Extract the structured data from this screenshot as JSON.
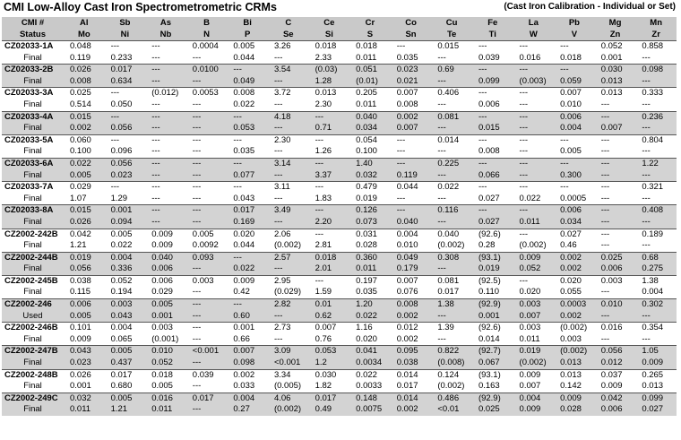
{
  "title": "CMI Low-Alloy Cast Iron Spectrometrometric CRMs",
  "subtitle": "(Cast Iron Calibration - Individual or Set)",
  "headers_row1": [
    "CMI #",
    "Al",
    "Sb",
    "As",
    "B",
    "Bi",
    "C",
    "Ce",
    "Cr",
    "Co",
    "Cu",
    "Fe",
    "La",
    "Pb",
    "Mg",
    "Mn"
  ],
  "headers_row2": [
    "Status",
    "Mo",
    "Ni",
    "Nb",
    "N",
    "P",
    "Se",
    "Si",
    "S",
    "Sn",
    "Te",
    "Ti",
    "W",
    "V",
    "Zn",
    "Zr"
  ],
  "rows": [
    {
      "id": "CZ02033-1A",
      "status": "Final",
      "a": [
        "0.048",
        "---",
        "---",
        "0.0004",
        "0.005",
        "3.26",
        "0.018",
        "0.018",
        "---",
        "0.015",
        "---",
        "---",
        "---",
        "0.052",
        "0.858"
      ],
      "b": [
        "0.119",
        "0.233",
        "---",
        "---",
        "0.044",
        "---",
        "2.33",
        "0.011",
        "0.035",
        "---",
        "0.039",
        "0.016",
        "0.018",
        "0.001",
        "---"
      ]
    },
    {
      "id": "CZ02033-2B",
      "status": "Final",
      "a": [
        "0.026",
        "0.017",
        "---",
        "0.0100",
        "---",
        "3.54",
        "(0.03)",
        "0.051",
        "0.023",
        "0.69",
        "---",
        "---",
        "---",
        "0.030",
        "0.098"
      ],
      "b": [
        "0.008",
        "0.634",
        "---",
        "---",
        "0.049",
        "---",
        "1.28",
        "(0.01)",
        "0.021",
        "---",
        "0.099",
        "(0.003)",
        "0.059",
        "0.013",
        "---"
      ]
    },
    {
      "id": "CZ02033-3A",
      "status": "Final",
      "a": [
        "0.025",
        "---",
        "(0.012)",
        "0.0053",
        "0.008",
        "3.72",
        "0.013",
        "0.205",
        "0.007",
        "0.406",
        "---",
        "---",
        "0.007",
        "0.013",
        "0.333"
      ],
      "b": [
        "0.514",
        "0.050",
        "---",
        "---",
        "0.022",
        "---",
        "2.30",
        "0.011",
        "0.008",
        "---",
        "0.006",
        "---",
        "0.010",
        "---",
        "---"
      ]
    },
    {
      "id": "CZ02033-4A",
      "status": "Final",
      "a": [
        "0.015",
        "---",
        "---",
        "---",
        "---",
        "4.18",
        "---",
        "0.040",
        "0.002",
        "0.081",
        "---",
        "---",
        "0.006",
        "---",
        "0.236"
      ],
      "b": [
        "0.002",
        "0.056",
        "---",
        "---",
        "0.053",
        "---",
        "0.71",
        "0.034",
        "0.007",
        "---",
        "0.015",
        "---",
        "0.004",
        "0.007",
        "---"
      ]
    },
    {
      "id": "CZ02033-5A",
      "status": "Final",
      "a": [
        "0.060",
        "---",
        "---",
        "---",
        "---",
        "2.30",
        "---",
        "0.054",
        "---",
        "0.014",
        "---",
        "---",
        "---",
        "---",
        "0.804"
      ],
      "b": [
        "0.100",
        "0.096",
        "---",
        "---",
        "0.035",
        "---",
        "1.26",
        "0.100",
        "---",
        "---",
        "0.008",
        "---",
        "0.005",
        "---",
        "---"
      ]
    },
    {
      "id": "CZ02033-6A",
      "status": "Final",
      "a": [
        "0.022",
        "0.056",
        "---",
        "---",
        "---",
        "3.14",
        "---",
        "1.40",
        "---",
        "0.225",
        "---",
        "---",
        "---",
        "---",
        "1.22"
      ],
      "b": [
        "0.005",
        "0.023",
        "---",
        "---",
        "0.077",
        "---",
        "3.37",
        "0.032",
        "0.119",
        "---",
        "0.066",
        "---",
        "0.300",
        "---",
        "---"
      ]
    },
    {
      "id": "CZ02033-7A",
      "status": "Final",
      "a": [
        "0.029",
        "---",
        "---",
        "---",
        "---",
        "3.11",
        "---",
        "0.479",
        "0.044",
        "0.022",
        "---",
        "---",
        "---",
        "---",
        "0.321"
      ],
      "b": [
        "1.07",
        "1.29",
        "---",
        "---",
        "0.043",
        "---",
        "1.83",
        "0.019",
        "---",
        "---",
        "0.027",
        "0.022",
        "0.0005",
        "---",
        "---"
      ]
    },
    {
      "id": "CZ02033-8A",
      "status": "Final",
      "a": [
        "0.015",
        "0.001",
        "---",
        "---",
        "0.017",
        "3.49",
        "---",
        "0.126",
        "---",
        "0.116",
        "---",
        "---",
        "0.006",
        "---",
        "0.408"
      ],
      "b": [
        "0.026",
        "0.094",
        "---",
        "---",
        "0.169",
        "---",
        "2.20",
        "0.073",
        "0.040",
        "---",
        "0.027",
        "0.011",
        "0.034",
        "---",
        "---"
      ]
    },
    {
      "id": "CZ2002-242B",
      "status": "Final",
      "a": [
        "0.042",
        "0.005",
        "0.009",
        "0.005",
        "0.020",
        "2.06",
        "---",
        "0.031",
        "0.004",
        "0.040",
        "(92.6)",
        "---",
        "0.027",
        "---",
        "0.189"
      ],
      "b": [
        "1.21",
        "0.022",
        "0.009",
        "0.0092",
        "0.044",
        "(0.002)",
        "2.81",
        "0.028",
        "0.010",
        "(0.002)",
        "0.28",
        "(0.002)",
        "0.46",
        "---",
        "---"
      ]
    },
    {
      "id": "CZ2002-244B",
      "status": "Final",
      "a": [
        "0.019",
        "0.004",
        "0.040",
        "0.093",
        "---",
        "2.57",
        "0.018",
        "0.360",
        "0.049",
        "0.308",
        "(93.1)",
        "0.009",
        "0.002",
        "0.025",
        "0.68"
      ],
      "b": [
        "0.056",
        "0.336",
        "0.006",
        "---",
        "0.022",
        "---",
        "2.01",
        "0.011",
        "0.179",
        "---",
        "0.019",
        "0.052",
        "0.002",
        "0.006",
        "0.275"
      ]
    },
    {
      "id": "CZ2002-245B",
      "status": "Final",
      "a": [
        "0.038",
        "0.052",
        "0.006",
        "0.003",
        "0.009",
        "2.95",
        "---",
        "0.197",
        "0.007",
        "0.081",
        "(92.5)",
        "---",
        "0.020",
        "0.003",
        "1.38"
      ],
      "b": [
        "0.115",
        "0.194",
        "0.029",
        "---",
        "0.42",
        "(0.029)",
        "1.59",
        "0.035",
        "0.076",
        "0.017",
        "0.110",
        "0.020",
        "0.055",
        "---",
        "0.004"
      ]
    },
    {
      "id": "CZ2002-246",
      "status": "Used",
      "a": [
        "0.006",
        "0.003",
        "0.005",
        "---",
        "---",
        "2.82",
        "0.01",
        "1.20",
        "0.008",
        "1.38",
        "(92.9)",
        "0.003",
        "0.0003",
        "0.010",
        "0.302"
      ],
      "b": [
        "0.005",
        "0.043",
        "0.001",
        "---",
        "0.60",
        "---",
        "0.62",
        "0.022",
        "0.002",
        "---",
        "0.001",
        "0.007",
        "0.002",
        "---",
        "---"
      ]
    },
    {
      "id": "CZ2002-246B",
      "status": "Final",
      "a": [
        "0.101",
        "0.004",
        "0.003",
        "---",
        "0.001",
        "2.73",
        "0.007",
        "1.16",
        "0.012",
        "1.39",
        "(92.6)",
        "0.003",
        "(0.002)",
        "0.016",
        "0.354"
      ],
      "b": [
        "0.009",
        "0.065",
        "(0.001)",
        "---",
        "0.66",
        "---",
        "0.76",
        "0.020",
        "0.002",
        "---",
        "0.014",
        "0.011",
        "0.003",
        "---",
        "---"
      ]
    },
    {
      "id": "CZ2002-247B",
      "status": "Final",
      "a": [
        "0.043",
        "0.005",
        "0.010",
        "<0.001",
        "0.007",
        "3.09",
        "0.053",
        "0.041",
        "0.095",
        "0.822",
        "(92.7)",
        "0.019",
        "(0.002)",
        "0.056",
        "1.05"
      ],
      "b": [
        "0.023",
        "0.437",
        "0.052",
        "---",
        "0.098",
        "<0.001",
        "1.2",
        "0.0034",
        "0.038",
        "(0.008)",
        "0.067",
        "(0.002)",
        "0.013",
        "0.012",
        "0.009"
      ]
    },
    {
      "id": "CZ2002-248B",
      "status": "Final",
      "a": [
        "0.026",
        "0.017",
        "0.018",
        "0.039",
        "0.002",
        "3.34",
        "0.030",
        "0.022",
        "0.014",
        "0.124",
        "(93.1)",
        "0.009",
        "0.013",
        "0.037",
        "0.265"
      ],
      "b": [
        "0.001",
        "0.680",
        "0.005",
        "---",
        "0.033",
        "(0.005)",
        "1.82",
        "0.0033",
        "0.017",
        "(0.002)",
        "0.163",
        "0.007",
        "0.142",
        "0.009",
        "0.013"
      ]
    },
    {
      "id": "CZ2002-249C",
      "status": "Final",
      "a": [
        "0.032",
        "0.005",
        "0.016",
        "0.017",
        "0.004",
        "4.06",
        "0.017",
        "0.148",
        "0.014",
        "0.486",
        "(92.9)",
        "0.004",
        "0.009",
        "0.042",
        "0.099"
      ],
      "b": [
        "0.011",
        "1.21",
        "0.011",
        "---",
        "0.27",
        "(0.002)",
        "0.49",
        "0.0075",
        "0.002",
        "<0.01",
        "0.025",
        "0.009",
        "0.028",
        "0.006",
        "0.027"
      ]
    }
  ]
}
